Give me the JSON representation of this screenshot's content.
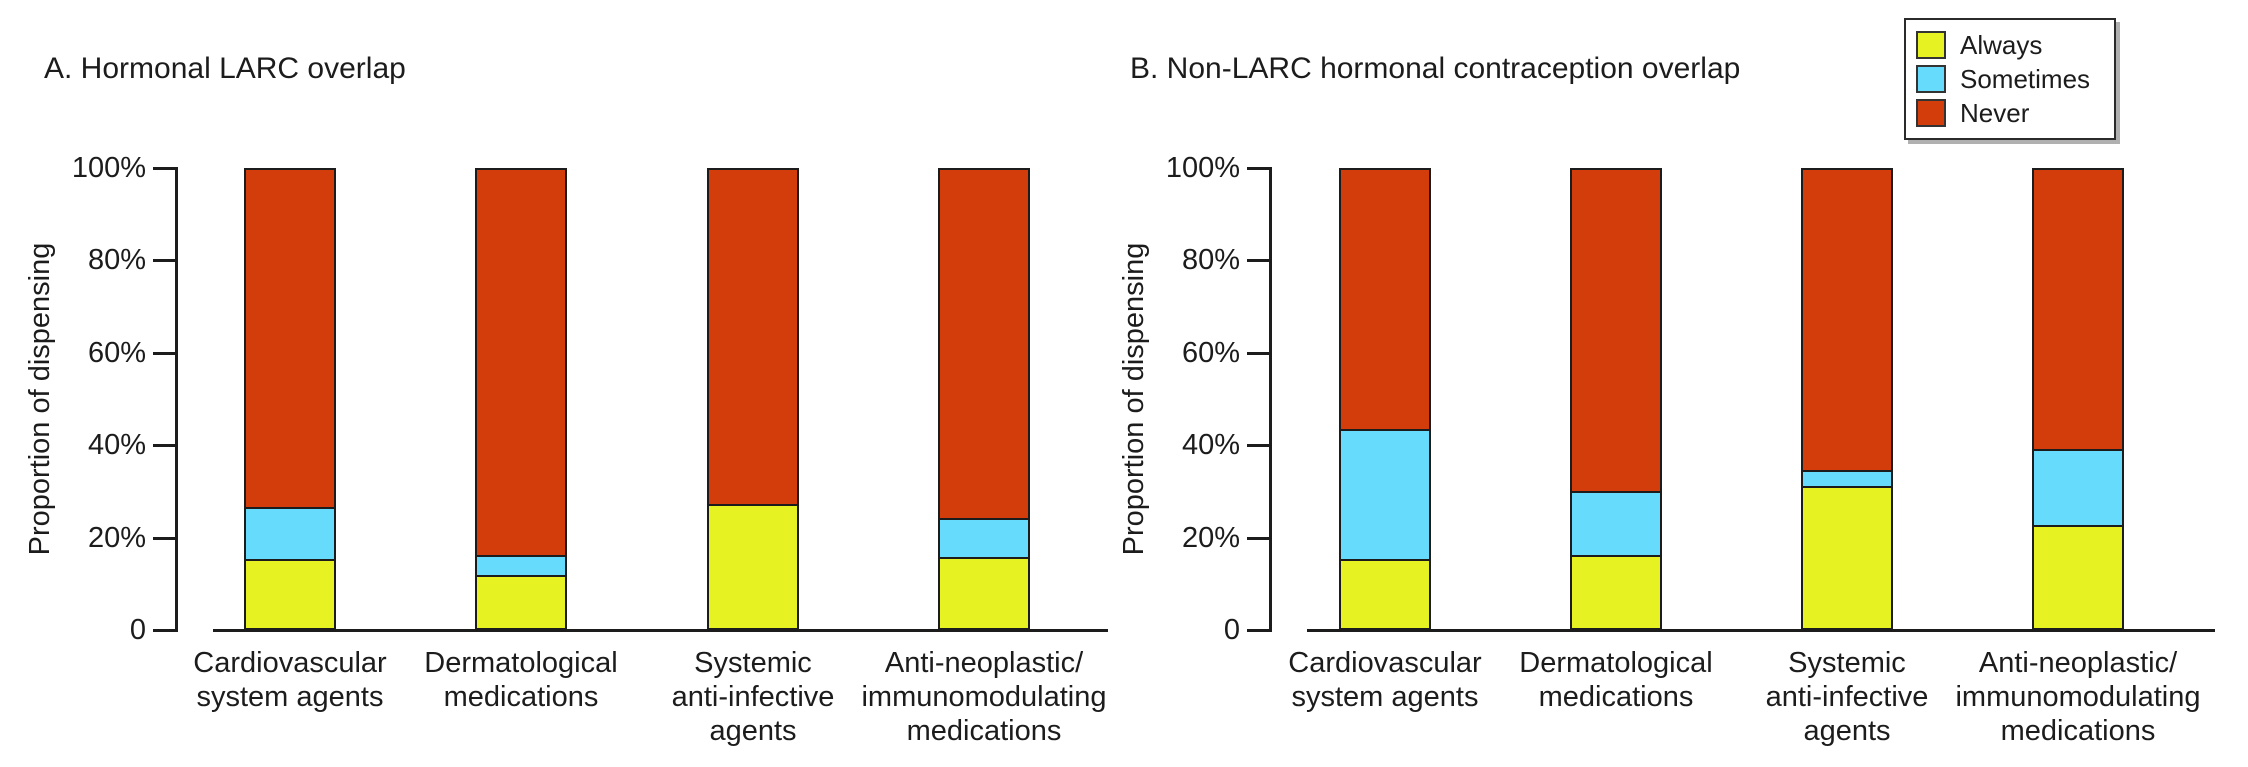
{
  "figure": {
    "background": "#ffffff",
    "axis_color": "#1c1c1c",
    "text_color": "#1c1c1c"
  },
  "legend": {
    "position": "top-right",
    "items": [
      {
        "label": "Always",
        "color": "#e7f222"
      },
      {
        "label": "Sometimes",
        "color": "#67dbfb"
      },
      {
        "label": "Never",
        "color": "#d33d0b"
      }
    ]
  },
  "chart_data": [
    {
      "type": "bar",
      "stacked": true,
      "title": "A. Hormonal LARC overlap",
      "xlabel": "",
      "ylabel": "Proportion of dispensing",
      "ylim": [
        0,
        100
      ],
      "grid": false,
      "yticks": [
        {
          "value": 0,
          "label": "0"
        },
        {
          "value": 20,
          "label": "20%"
        },
        {
          "value": 40,
          "label": "40%"
        },
        {
          "value": 60,
          "label": "60%"
        },
        {
          "value": 80,
          "label": "80%"
        },
        {
          "value": 100,
          "label": "100%"
        }
      ],
      "categories": [
        [
          "Cardiovascular",
          "system agents"
        ],
        [
          "Dermatological",
          "medications"
        ],
        [
          "Systemic",
          "anti-infective",
          "agents"
        ],
        [
          "Anti-neoplastic/",
          "immunomodulating",
          "medications"
        ]
      ],
      "series": [
        {
          "name": "Always",
          "color": "#e7f222",
          "values": [
            15,
            11.5,
            27,
            15.5
          ]
        },
        {
          "name": "Sometimes",
          "color": "#67dbfb",
          "values": [
            11.5,
            4.5,
            0,
            8.5
          ]
        },
        {
          "name": "Never",
          "color": "#d33d0b",
          "values": [
            73.5,
            84,
            73,
            76
          ]
        }
      ]
    },
    {
      "type": "bar",
      "stacked": true,
      "title": "B. Non-LARC hormonal contraception overlap",
      "xlabel": "",
      "ylabel": "Proportion of dispensing",
      "ylim": [
        0,
        100
      ],
      "grid": false,
      "yticks": [
        {
          "value": 0,
          "label": "0"
        },
        {
          "value": 20,
          "label": "20%"
        },
        {
          "value": 40,
          "label": "40%"
        },
        {
          "value": 60,
          "label": "60%"
        },
        {
          "value": 80,
          "label": "80%"
        },
        {
          "value": 100,
          "label": "100%"
        }
      ],
      "categories": [
        [
          "Cardiovascular",
          "system agents"
        ],
        [
          "Dermatological",
          "medications"
        ],
        [
          "Systemic",
          "anti-infective",
          "agents"
        ],
        [
          "Anti-neoplastic/",
          "immunomodulating",
          "medications"
        ]
      ],
      "series": [
        {
          "name": "Always",
          "color": "#e7f222",
          "values": [
            15,
            16,
            31,
            22.5
          ]
        },
        {
          "name": "Sometimes",
          "color": "#67dbfb",
          "values": [
            28.5,
            14,
            3.5,
            16.5
          ]
        },
        {
          "name": "Never",
          "color": "#d33d0b",
          "values": [
            56.5,
            70,
            65.5,
            61
          ]
        }
      ]
    }
  ]
}
